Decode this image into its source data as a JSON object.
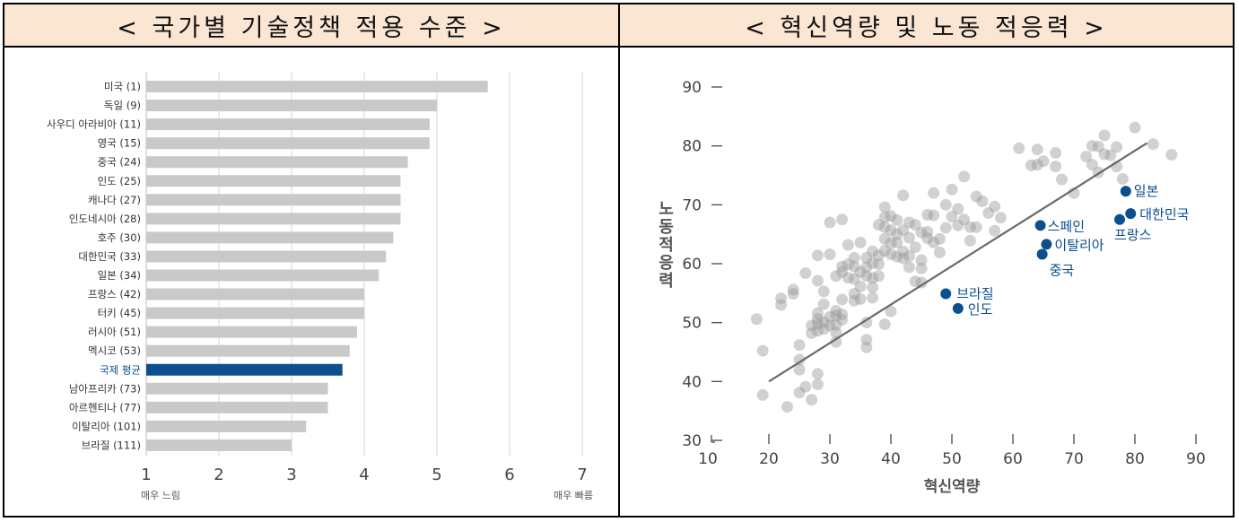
{
  "left_panel": {
    "header": "< 국가별 기술정책 적용 수준 >"
  },
  "right_panel": {
    "header": "< 혁신역량 및 노동 적응력 >"
  },
  "colors": {
    "bar": "#c9c9c9",
    "highlight_bar": "#0b4f8f",
    "header_bg": "#fbe5d3",
    "scatter_gray": "#9a9a9a",
    "highlight_point": "#0b4f8f",
    "trend_line": "#6a6a6a"
  },
  "chart_data": [
    {
      "type": "bar",
      "orientation": "horizontal",
      "categories": [
        "미국 (1)",
        "독일 (9)",
        "사우디 아라비아 (11)",
        "영국 (15)",
        "중국 (24)",
        "인도 (25)",
        "캐나다 (27)",
        "인도네시아 (28)",
        "호주 (30)",
        "대한민국 (33)",
        "일본 (34)",
        "프랑스 (42)",
        "터키 (45)",
        "러시아 (51)",
        "멕시코 (53)",
        "국제 평균",
        "남아프리카 (73)",
        "아르헨티나 (77)",
        "이탈리아 (101)",
        "브라질 (111)"
      ],
      "values": [
        5.7,
        5.0,
        4.9,
        4.9,
        4.6,
        4.5,
        4.5,
        4.5,
        4.4,
        4.3,
        4.2,
        4.0,
        4.0,
        3.9,
        3.8,
        3.7,
        3.5,
        3.5,
        3.2,
        3.0
      ],
      "highlight": "국제 평균",
      "xlim": [
        1,
        7
      ],
      "xticks": [
        "1",
        "2",
        "3",
        "4",
        "5",
        "6",
        "7"
      ],
      "x_end_labels": {
        "low": "매우 느림",
        "high": "매우 빠름"
      },
      "grid": "vertical"
    },
    {
      "type": "scatter",
      "xlabel": "혁신역량",
      "ylabel": "노동적응력",
      "xlim": [
        10,
        90
      ],
      "ylim": [
        30,
        90
      ],
      "xticks": [
        "10",
        "20",
        "30",
        "40",
        "50",
        "60",
        "70",
        "80",
        "90"
      ],
      "yticks": [
        "30",
        "40",
        "50",
        "60",
        "70",
        "80",
        "90"
      ],
      "trend_line": {
        "x": [
          20,
          82
        ],
        "y": [
          40,
          80.5
        ]
      },
      "highlighted": [
        {
          "label": "일본",
          "x": 78.5,
          "y": 72.3
        },
        {
          "label": "대한민국",
          "x": 79.3,
          "y": 68.5
        },
        {
          "label": "프랑스",
          "x": 77.5,
          "y": 67.5
        },
        {
          "label": "스페인",
          "x": 64.5,
          "y": 66.5
        },
        {
          "label": "이탈리아",
          "x": 65.5,
          "y": 63.3
        },
        {
          "label": "중국",
          "x": 64.8,
          "y": 61.6
        },
        {
          "label": "브라질",
          "x": 49.0,
          "y": 54.9
        },
        {
          "label": "인도",
          "x": 51.0,
          "y": 52.4
        }
      ],
      "points": [
        [
          18,
          50.6
        ],
        [
          19,
          45.2
        ],
        [
          19,
          37.7
        ],
        [
          22,
          54.1
        ],
        [
          22,
          53.0
        ],
        [
          23,
          35.7
        ],
        [
          24,
          55.6
        ],
        [
          24,
          54.9
        ],
        [
          25,
          46.2
        ],
        [
          25,
          43.7
        ],
        [
          25,
          42.0
        ],
        [
          25,
          38.1
        ],
        [
          26,
          39.1
        ],
        [
          26,
          58.4
        ],
        [
          27,
          49.5
        ],
        [
          27,
          48.2
        ],
        [
          27,
          36.9
        ],
        [
          28,
          61.4
        ],
        [
          28,
          57.1
        ],
        [
          28,
          51.6
        ],
        [
          28,
          50.6
        ],
        [
          28,
          49.8
        ],
        [
          28,
          48.6
        ],
        [
          28,
          41.3
        ],
        [
          28,
          39.5
        ],
        [
          29,
          55.3
        ],
        [
          29,
          53.1
        ],
        [
          29,
          50.1
        ],
        [
          29,
          48.9
        ],
        [
          30,
          67.0
        ],
        [
          30,
          61.6
        ],
        [
          30,
          51.0
        ],
        [
          30,
          49.5
        ],
        [
          31,
          57.9
        ],
        [
          31,
          52.0
        ],
        [
          31,
          51.2
        ],
        [
          31,
          49.6
        ],
        [
          31,
          48.3
        ],
        [
          31,
          46.7
        ],
        [
          32,
          67.5
        ],
        [
          32,
          59.5
        ],
        [
          32,
          58.6
        ],
        [
          32,
          53.9
        ],
        [
          32,
          51.4
        ],
        [
          32,
          50.5
        ],
        [
          33,
          63.2
        ],
        [
          33,
          59.9
        ],
        [
          33,
          57.6
        ],
        [
          34,
          61.0
        ],
        [
          34,
          59.5
        ],
        [
          34,
          57.4
        ],
        [
          34,
          54.9
        ],
        [
          34,
          53.7
        ],
        [
          35,
          63.6
        ],
        [
          35,
          58.6
        ],
        [
          35,
          56.1
        ],
        [
          35,
          54.0
        ],
        [
          36,
          61.0
        ],
        [
          36,
          59.4
        ],
        [
          36,
          57.9
        ],
        [
          36,
          50.0
        ],
        [
          36,
          47.1
        ],
        [
          36,
          45.8
        ],
        [
          37,
          62.1
        ],
        [
          37,
          60.1
        ],
        [
          37,
          57.6
        ],
        [
          37,
          56.0
        ],
        [
          37,
          54.2
        ],
        [
          38,
          66.6
        ],
        [
          38,
          61.4
        ],
        [
          38,
          59.9
        ],
        [
          38,
          57.9
        ],
        [
          39,
          69.6
        ],
        [
          39,
          67.9
        ],
        [
          39,
          66.2
        ],
        [
          39,
          64.2
        ],
        [
          39,
          62.2
        ],
        [
          39,
          49.7
        ],
        [
          40,
          68.1
        ],
        [
          40,
          65.7
        ],
        [
          40,
          63.5
        ],
        [
          40,
          61.6
        ],
        [
          40,
          51.9
        ],
        [
          41,
          67.4
        ],
        [
          41,
          65.0
        ],
        [
          41,
          63.6
        ],
        [
          41,
          61.2
        ],
        [
          42,
          71.6
        ],
        [
          42,
          65.7
        ],
        [
          42,
          62.1
        ],
        [
          42,
          60.9
        ],
        [
          43,
          67.0
        ],
        [
          43,
          64.4
        ],
        [
          43,
          61.3
        ],
        [
          43,
          59.4
        ],
        [
          44,
          66.6
        ],
        [
          44,
          62.8
        ],
        [
          44,
          57.0
        ],
        [
          45,
          65.3
        ],
        [
          45,
          60.6
        ],
        [
          45,
          59.2
        ],
        [
          45,
          56.8
        ],
        [
          46,
          68.3
        ],
        [
          46,
          65.4
        ],
        [
          46,
          64.3
        ],
        [
          47,
          72.0
        ],
        [
          47,
          68.2
        ],
        [
          47,
          63.6
        ],
        [
          48,
          64.2
        ],
        [
          48,
          61.9
        ],
        [
          49,
          70.0
        ],
        [
          49,
          66.1
        ],
        [
          50,
          72.6
        ],
        [
          50,
          68.0
        ],
        [
          51,
          69.3
        ],
        [
          51,
          66.5
        ],
        [
          52,
          74.8
        ],
        [
          52,
          67.5
        ],
        [
          53,
          66.2
        ],
        [
          53,
          63.9
        ],
        [
          54,
          71.4
        ],
        [
          54,
          66.2
        ],
        [
          55,
          70.6
        ],
        [
          56,
          68.6
        ],
        [
          57,
          69.7
        ],
        [
          57,
          65.6
        ],
        [
          58,
          67.8
        ],
        [
          61,
          79.6
        ],
        [
          63,
          76.7
        ],
        [
          64,
          79.4
        ],
        [
          64,
          76.8
        ],
        [
          65,
          77.4
        ],
        [
          67,
          78.8
        ],
        [
          67,
          76.5
        ],
        [
          68,
          74.3
        ],
        [
          70,
          72.0
        ],
        [
          72,
          78.2
        ],
        [
          73,
          80.0
        ],
        [
          73,
          76.8
        ],
        [
          74,
          79.9
        ],
        [
          74,
          75.5
        ],
        [
          75,
          81.8
        ],
        [
          75,
          78.6
        ],
        [
          76,
          78.4
        ],
        [
          77,
          79.8
        ],
        [
          77,
          76.5
        ],
        [
          78,
          74.4
        ],
        [
          80,
          83.1
        ],
        [
          83,
          80.3
        ],
        [
          86,
          78.5
        ]
      ]
    }
  ]
}
